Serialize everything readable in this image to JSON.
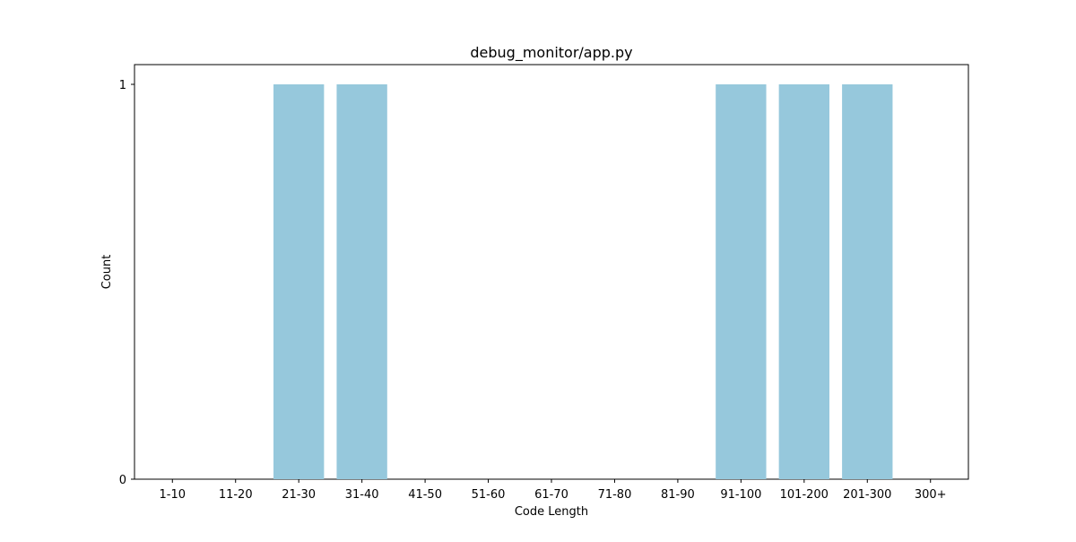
{
  "chart_data": {
    "type": "bar",
    "title": "debug_monitor/app.py",
    "xlabel": "Code Length",
    "ylabel": "Count",
    "categories": [
      "1-10",
      "11-20",
      "21-30",
      "31-40",
      "41-50",
      "51-60",
      "61-70",
      "71-80",
      "81-90",
      "91-100",
      "101-200",
      "201-300",
      "300+"
    ],
    "values": [
      0,
      0,
      1,
      1,
      0,
      0,
      0,
      0,
      0,
      1,
      1,
      1,
      0
    ],
    "ylim": [
      0,
      1.05
    ],
    "yticks": [
      {
        "value": 0,
        "label": "0"
      },
      {
        "value": 1,
        "label": "1"
      }
    ],
    "bar_color": "#96c8dc",
    "grid": false,
    "legend": "none"
  }
}
